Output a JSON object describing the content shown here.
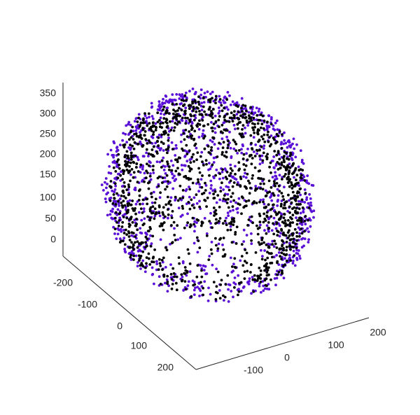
{
  "chart_data": {
    "type": "scatter",
    "subtype": "3d-scatter",
    "title": "",
    "xlabel": "",
    "ylabel": "",
    "zlabel": "",
    "grid": false,
    "legend": "none",
    "xlim": [
      -200,
      250
    ],
    "ylim": [
      -250,
      250
    ],
    "zlim": [
      0,
      360
    ],
    "x_ticks": [
      "-200",
      "-100",
      "0",
      "100",
      "200"
    ],
    "y_ticks": [
      "-100",
      "0",
      "100",
      "200"
    ],
    "z_ticks": [
      "0",
      "50",
      "100",
      "150",
      "200",
      "250",
      "300",
      "350"
    ],
    "series": [
      {
        "color": "#000000",
        "shape": "ellipsoidal point cloud surface (inner/near points)",
        "center": [
          0,
          0,
          170
        ],
        "radii": [
          180,
          220,
          170
        ]
      },
      {
        "color": "#5a10d6",
        "shape": "ellipsoidal point cloud surface (outer rim / ears)",
        "center": [
          0,
          0,
          175
        ],
        "radii": [
          200,
          240,
          180
        ]
      }
    ]
  }
}
